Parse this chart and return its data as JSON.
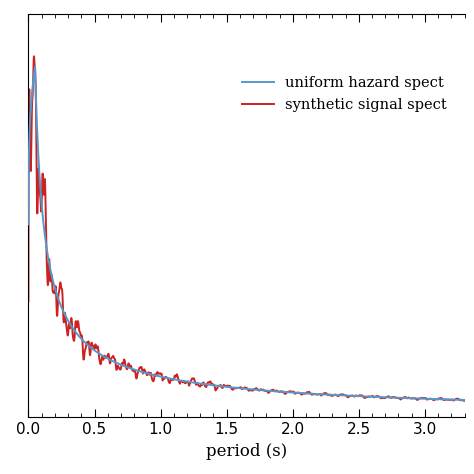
{
  "title": "",
  "xlabel": "period (s)",
  "ylabel": "",
  "xlim": [
    0.0,
    3.3
  ],
  "ylim": [
    0.0,
    1.15
  ],
  "x_ticks": [
    0.0,
    0.5,
    1.0,
    1.5,
    2.0,
    2.5,
    3.0
  ],
  "uhs_color": "#5599cc",
  "syn_color": "#cc2222",
  "legend_labels": [
    "uniform hazard spect",
    "synthetic signal spect"
  ],
  "background_color": "#ffffff",
  "linewidth": 1.4,
  "xlabel_fontsize": 12,
  "legend_fontsize": 10.5
}
